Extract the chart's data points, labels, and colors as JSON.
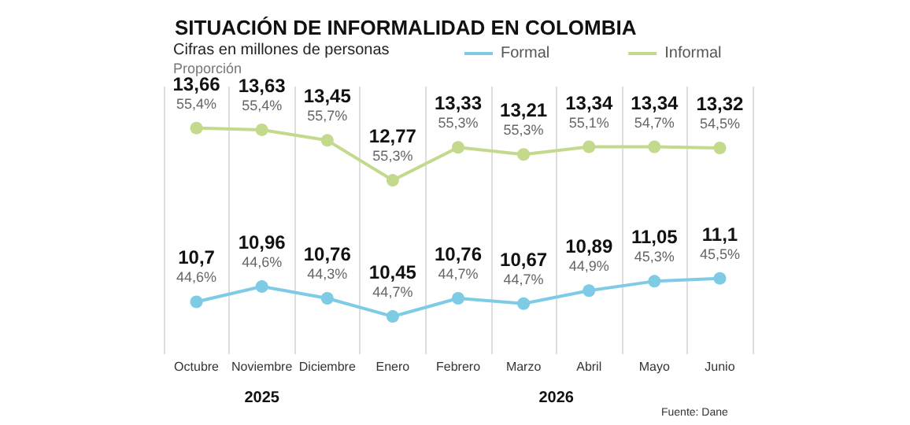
{
  "chart_data": {
    "type": "line",
    "title": "SITUACIÓN DE INFORMALIDAD EN COLOMBIA",
    "subtitle": "Cifras en millones de personas",
    "categories": [
      "Octubre",
      "Noviembre",
      "Diciembre",
      "Enero",
      "Febrero",
      "Marzo",
      "Abril",
      "Mayo",
      "Junio"
    ],
    "series": [
      {
        "name": "Formal",
        "color": "#7ecbe6",
        "values": [
          10.7,
          10.96,
          10.76,
          10.45,
          10.76,
          10.67,
          10.89,
          11.05,
          11.1
        ],
        "value_labels": [
          "10,7\n44,6%",
          "10,96\n44,6%",
          "10,76\n44,3%",
          "10,45\n44,7%",
          "10,76\n44,7%",
          "10,67\n44,7%",
          "10,89\n44,9%",
          "11,05\n45,3%",
          "11,1\n45,5%"
        ]
      },
      {
        "name": "Informal",
        "color": "#c3d98c",
        "values": [
          13.66,
          13.63,
          13.45,
          12.77,
          13.33,
          13.21,
          13.34,
          13.34,
          13.32
        ],
        "value_labels": [
          "13,66\n55,4%",
          "13,63\n55,4%",
          "13,45\n55,7%",
          "12,77\n55,3%",
          "13,33\n55,3%",
          "13,21\n55,3%",
          "13,34\n55,1%",
          "13,34\n54,7%",
          "13,32\n54,5%"
        ]
      }
    ],
    "annotations": [
      "Proporción",
      "2025",
      "2026",
      "Fuente: Dane"
    ],
    "grid": "x",
    "legend": "top",
    "marker": "circle"
  }
}
